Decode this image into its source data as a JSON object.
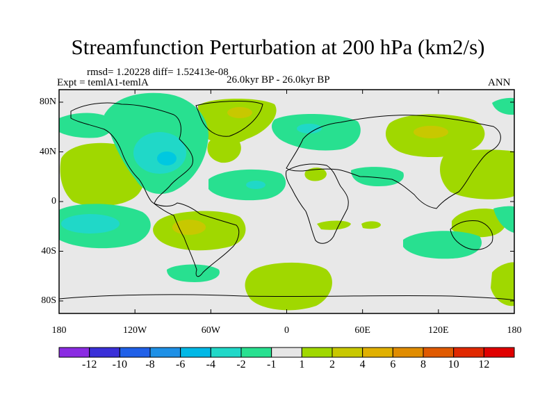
{
  "header": {
    "title": "Streamfunction Perturbation at 200 hPa (km2/s)",
    "stats": "rmsd= 1.20228 diff= 1.52413e-08",
    "expt": "Expt = temlA1-temlA",
    "period": "26.0kyr BP - 26.0kyr BP",
    "season": "ANN"
  },
  "axes": {
    "y_ticks": [
      "80N",
      "40N",
      "0",
      "40S",
      "80S"
    ],
    "x_ticks": [
      "180",
      "120W",
      "60W",
      "0",
      "60E",
      "120E",
      "180"
    ]
  },
  "colorbar": {
    "labels": [
      "-12",
      "-10",
      "-8",
      "-6",
      "-4",
      "-2",
      "-1",
      "1",
      "2",
      "4",
      "6",
      "8",
      "10",
      "12"
    ],
    "colors": [
      "#8a2be2",
      "#3a2fd8",
      "#2060e8",
      "#1e90e6",
      "#00b8e6",
      "#20d8c8",
      "#28e090",
      "#e6e6e6",
      "#a0d800",
      "#c8c800",
      "#e0b000",
      "#e08c00",
      "#e05a00",
      "#e02800",
      "#e00000"
    ]
  },
  "colors": {
    "neutral": "#e8e8e8",
    "pos1": "#a0d800",
    "pos2": "#c8c800",
    "neg1": "#28e090",
    "neg2": "#20d8c8",
    "neg3": "#00c8e0"
  }
}
